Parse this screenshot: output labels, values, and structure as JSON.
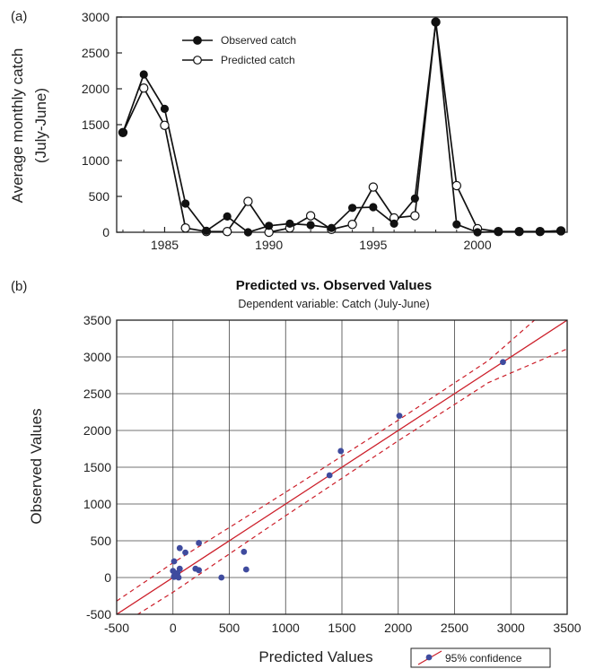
{
  "chart_data": [
    {
      "panel_label": "(a)",
      "type": "line",
      "ylabel_line1": "Average monthly catch",
      "ylabel_line2": "(July-June)",
      "xlim": [
        1982.7,
        2004.3
      ],
      "ylim": [
        0,
        3000
      ],
      "x_ticks": [
        1985,
        1990,
        1995,
        2000
      ],
      "y_ticks": [
        0,
        500,
        1000,
        1500,
        2000,
        2500,
        3000
      ],
      "legend_position": "top-left",
      "grid": false,
      "series": [
        {
          "name": "Observed catch",
          "marker": "filled-circle",
          "x": [
            1983,
            1984,
            1985,
            1986,
            1987,
            1988,
            1989,
            1990,
            1991,
            1992,
            1993,
            1994,
            1995,
            1996,
            1997,
            1998,
            1999,
            2000,
            2001,
            2002,
            2003,
            2004
          ],
          "y": [
            1390,
            2200,
            1720,
            400,
            20,
            220,
            0,
            90,
            120,
            100,
            60,
            340,
            350,
            120,
            470,
            2930,
            110,
            0,
            10,
            10,
            10,
            20
          ]
        },
        {
          "name": "Predicted catch",
          "marker": "open-circle",
          "x": [
            1983,
            1984,
            1985,
            1986,
            1987,
            1988,
            1989,
            1990,
            1991,
            1992,
            1993,
            1994,
            1995,
            1996,
            1997,
            1998,
            1999,
            2000,
            2001,
            2002,
            2003,
            2004
          ],
          "y": [
            1390,
            2010,
            1490,
            60,
            10,
            10,
            430,
            0,
            60,
            230,
            40,
            110,
            630,
            200,
            230,
            2930,
            650,
            50,
            10,
            10,
            10,
            20
          ]
        }
      ]
    },
    {
      "panel_label": "(b)",
      "type": "scatter",
      "title": "Predicted vs. Observed Values",
      "subtitle": "Dependent variable: Catch (July-June)",
      "xlabel": "Predicted Values",
      "ylabel": "Observed Values",
      "xlim": [
        -500,
        3500
      ],
      "ylim": [
        -500,
        3500
      ],
      "x_ticks": [
        -500,
        0,
        500,
        1000,
        1500,
        2000,
        2500,
        3000,
        3500
      ],
      "y_ticks": [
        -500,
        0,
        500,
        1000,
        1500,
        2000,
        2500,
        3000,
        3500
      ],
      "grid": true,
      "legend_position": "bottom-right",
      "legend_label": "95% confidence",
      "colors": {
        "points": "#3f4b9e",
        "fit_line": "#cc1f2a"
      },
      "points": {
        "x": [
          1390,
          2010,
          1490,
          60,
          10,
          10,
          430,
          0,
          60,
          230,
          40,
          110,
          630,
          200,
          230,
          2930,
          650,
          50,
          10,
          10,
          10,
          20
        ],
        "y": [
          1390,
          2200,
          1720,
          400,
          20,
          220,
          0,
          90,
          120,
          100,
          60,
          340,
          350,
          120,
          470,
          2930,
          110,
          0,
          10,
          10,
          10,
          20
        ]
      },
      "fit_line": {
        "slope": 1.0,
        "intercept": 0
      },
      "confidence_band": {
        "x": [
          -500,
          0,
          1000,
          2000,
          2800,
          3500
        ],
        "lower": [
          -680,
          -200,
          840,
          1860,
          2650,
          3110
        ],
        "upper": [
          -320,
          200,
          1160,
          2140,
          2950,
          3890
        ]
      }
    }
  ]
}
